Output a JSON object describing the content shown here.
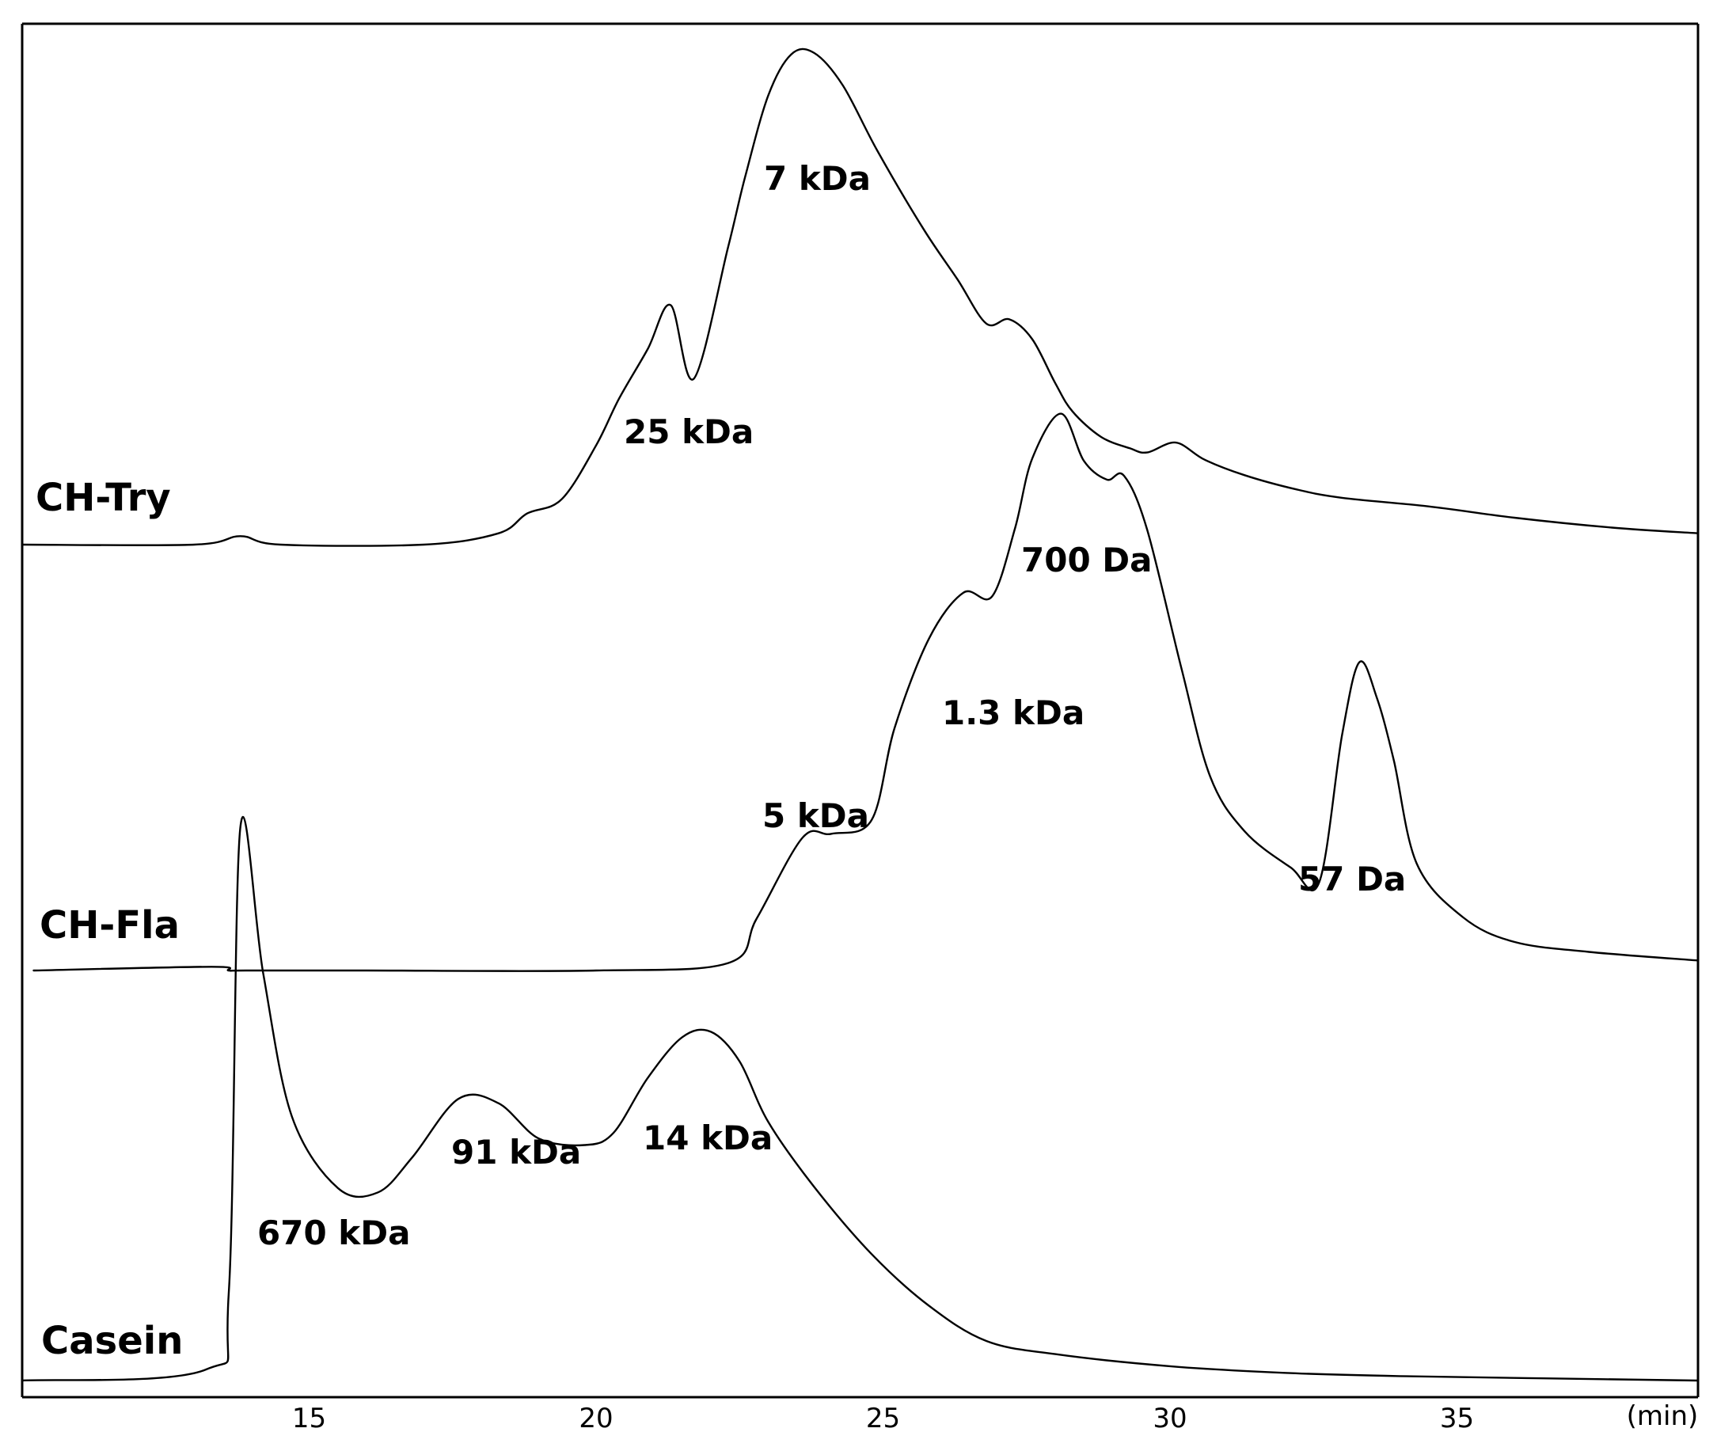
{
  "chart_data": {
    "type": "line",
    "title": "",
    "xlabel": "(min)",
    "ylabel": "",
    "xlim": [
      10,
      39.2
    ],
    "x_ticks": [
      15,
      20,
      25,
      30,
      35
    ],
    "grid": false,
    "legend": "none",
    "line_color": "#000000",
    "background": "#ffffff",
    "series": [
      {
        "name": "CH-Try",
        "x": [
          10,
          13,
          13.8,
          14.5,
          17,
          18.3,
          18.8,
          19.4,
          20,
          20.4,
          20.9,
          21.3,
          21.7,
          22.3,
          22.6,
          23,
          23.4,
          23.8,
          24.3,
          24.9,
          25.7,
          26.3,
          26.8,
          27.2,
          27.6,
          28,
          28.3,
          28.8,
          29.3,
          29.6,
          30.1,
          30.6,
          31.3,
          32.2,
          33,
          34.5,
          36,
          37.7,
          39.2
        ],
        "y": [
          0,
          0,
          0.6,
          0,
          0,
          0.8,
          2.2,
          3.2,
          7,
          10.3,
          13.8,
          16.9,
          11.7,
          21,
          26,
          31.7,
          34.6,
          34.7,
          32.4,
          27.8,
          22.3,
          18.7,
          15.6,
          15.9,
          14.5,
          11.4,
          9.4,
          7.6,
          6.8,
          6.5,
          7.2,
          6,
          4.9,
          3.9,
          3.3,
          2.7,
          1.9,
          1.2,
          0.8
        ]
      },
      {
        "name": "CH-Fla",
        "x": [
          10.2,
          13.3,
          13.6,
          13.9,
          16,
          20,
          22.3,
          22.8,
          23.6,
          24.1,
          24.8,
          25.2,
          25.8,
          26.4,
          26.9,
          27.3,
          27.6,
          28.1,
          28.5,
          28.9,
          29.2,
          29.6,
          30.2,
          30.7,
          31.3,
          32.1,
          32.6,
          33.0,
          33.3,
          33.6,
          33.9,
          34.3,
          35.1,
          36,
          37.3,
          39.2
        ],
        "y": [
          0,
          0.3,
          0,
          0,
          0,
          0,
          0.6,
          4.2,
          10.7,
          11,
          12.1,
          19.5,
          26.7,
          30.4,
          30.1,
          35.6,
          41.2,
          44.8,
          41,
          39.5,
          39.8,
          35.5,
          24.3,
          15.6,
          11.2,
          8.3,
          7.1,
          19,
          24.8,
          22,
          16.9,
          8.6,
          4.3,
          2.3,
          1.5,
          0.8
        ]
      },
      {
        "name": "Casein",
        "x": [
          10,
          13.2,
          13.6,
          13.8,
          14.2,
          14.7,
          15.5,
          16.2,
          16.8,
          17.6,
          18.3,
          19,
          19.8,
          20.3,
          20.9,
          21.5,
          22.0,
          22.5,
          23,
          23.8,
          24.8,
          25.8,
          26.8,
          28,
          30,
          32,
          34,
          36.5,
          39.2
        ],
        "y": [
          0,
          1,
          8,
          50.2,
          37,
          24,
          17.5,
          17.1,
          20.3,
          25.6,
          25.2,
          22,
          21.4,
          22.5,
          27.5,
          31.2,
          31.7,
          29,
          23.5,
          17.6,
          11.5,
          6.8,
          3.6,
          2.4,
          1.3,
          0.7,
          0.4,
          0.2,
          0
        ]
      }
    ],
    "annotations": [
      {
        "text": "7 kDa",
        "series": "CH-Try"
      },
      {
        "text": "25 kDa",
        "series": "CH-Try"
      },
      {
        "text": "700 Da",
        "series": "CH-Fla"
      },
      {
        "text": "1.3 kDa",
        "series": "CH-Fla"
      },
      {
        "text": "5 kDa",
        "series": "CH-Fla"
      },
      {
        "text": "57 Da",
        "series": "CH-Fla"
      },
      {
        "text": "670 kDa",
        "series": "Casein"
      },
      {
        "text": "91 kDa",
        "series": "Casein"
      },
      {
        "text": "14 kDa",
        "series": "Casein"
      }
    ]
  }
}
